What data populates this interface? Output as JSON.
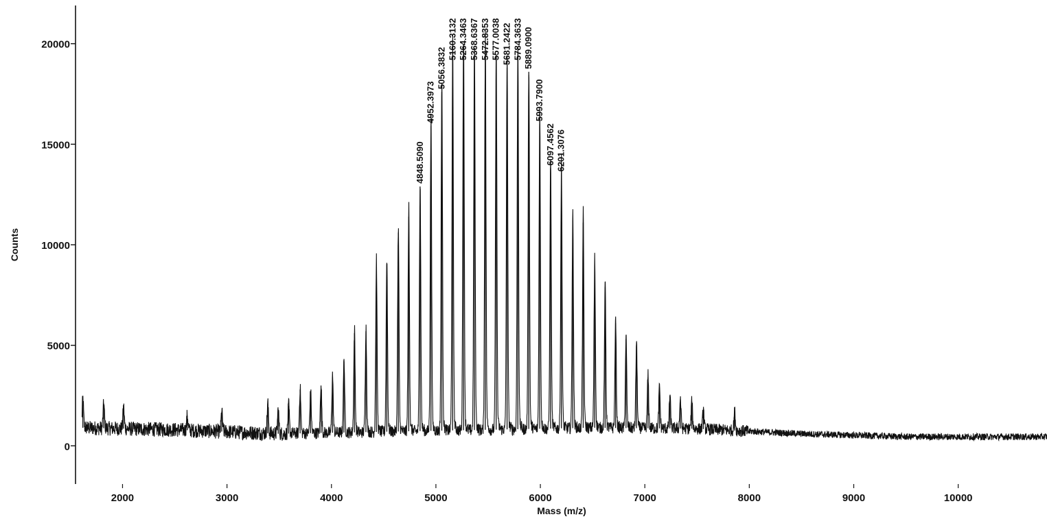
{
  "chart_data": {
    "type": "line",
    "xlabel": "Mass (m/z)",
    "ylabel": "Counts",
    "xlim": [
      1550,
      10850
    ],
    "ylim": [
      -1900,
      21900
    ],
    "xticks": [
      2000,
      3000,
      4000,
      5000,
      6000,
      7000,
      8000,
      9000,
      10000
    ],
    "yticks": [
      0,
      5000,
      10000,
      15000,
      20000
    ],
    "grid": false,
    "series": [
      {
        "baseline": [
          [
            1600,
            900
          ],
          [
            2500,
            800
          ],
          [
            3500,
            600
          ],
          [
            4500,
            700
          ],
          [
            5500,
            800
          ],
          [
            6500,
            900
          ],
          [
            7500,
            850
          ],
          [
            8500,
            600
          ],
          [
            9500,
            450
          ],
          [
            10850,
            450
          ]
        ],
        "peaks": [
          [
            1620,
            2300
          ],
          [
            1820,
            2100
          ],
          [
            2010,
            1900
          ],
          [
            2620,
            1500
          ],
          [
            2950,
            1700
          ],
          [
            3390,
            2100
          ],
          [
            3490,
            1800
          ],
          [
            3590,
            2000
          ],
          [
            3700,
            2800
          ],
          [
            3800,
            2700
          ],
          [
            3900,
            3000
          ],
          [
            4010,
            3400
          ],
          [
            4120,
            4200
          ],
          [
            4220,
            5600
          ],
          [
            4330,
            5700
          ],
          [
            4430,
            8900
          ],
          [
            4530,
            9100
          ],
          [
            4640,
            10600
          ],
          [
            4740,
            11400
          ],
          [
            4848.509,
            12900
          ],
          [
            4952.3973,
            15900
          ],
          [
            5056.3832,
            17600
          ],
          [
            5160.3132,
            19300
          ],
          [
            5264.3463,
            20000
          ],
          [
            5368.6367,
            19200
          ],
          [
            5472.8353,
            19600
          ],
          [
            5577.0038,
            19300
          ],
          [
            5681.2422,
            18800
          ],
          [
            5784.3633,
            19400
          ],
          [
            5889.09,
            18600
          ],
          [
            5993.79,
            16000
          ],
          [
            6097.4562,
            13800
          ],
          [
            6201.3076,
            13500
          ],
          [
            6310,
            11200
          ],
          [
            6410,
            11100
          ],
          [
            6520,
            8900
          ],
          [
            6620,
            7900
          ],
          [
            6720,
            6100
          ],
          [
            6820,
            5300
          ],
          [
            6920,
            5000
          ],
          [
            7030,
            3400
          ],
          [
            7140,
            2900
          ],
          [
            7240,
            2500
          ],
          [
            7340,
            2300
          ],
          [
            7450,
            2200
          ],
          [
            7560,
            1800
          ],
          [
            7860,
            1700
          ]
        ]
      }
    ],
    "annotations": [
      "4848.5090",
      "4952.3973",
      "5056.3832",
      "5160.3132",
      "5264.3463",
      "5368.6367",
      "5472.8353",
      "5577.0038",
      "5681.2422",
      "5784.3633",
      "5889.0900",
      "5993.7900",
      "6097.4562",
      "6201.3076"
    ]
  }
}
